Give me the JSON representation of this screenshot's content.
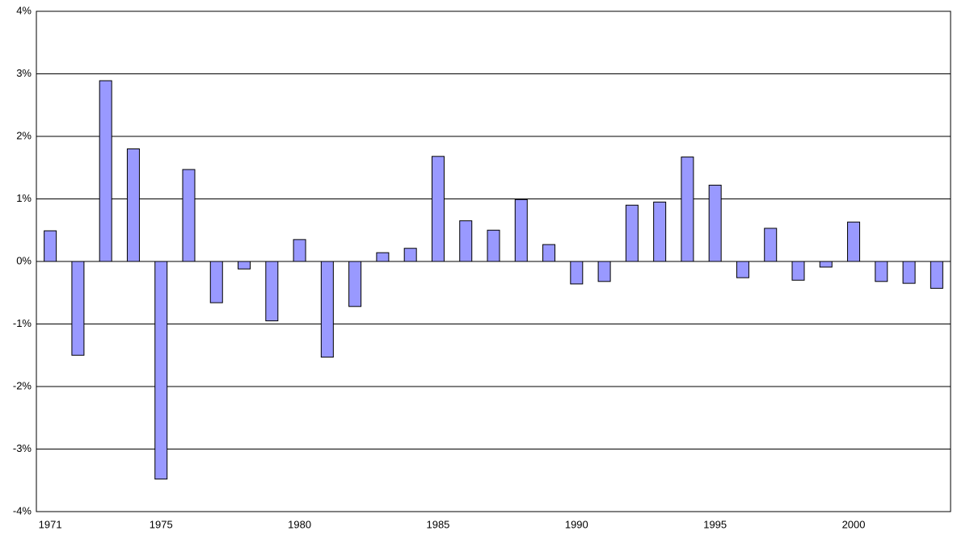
{
  "chart_data": {
    "type": "bar",
    "categories": [
      "1971",
      null,
      null,
      null,
      "1975",
      null,
      null,
      null,
      null,
      "1980",
      null,
      null,
      null,
      null,
      "1985",
      null,
      null,
      null,
      null,
      "1990",
      null,
      null,
      null,
      null,
      "1995",
      null,
      null,
      null,
      null,
      "2000",
      null,
      null,
      null
    ],
    "values": [
      0.49,
      -1.5,
      2.89,
      1.8,
      -3.48,
      1.47,
      -0.66,
      -0.12,
      -0.95,
      0.35,
      -1.53,
      -0.72,
      0.14,
      0.21,
      1.68,
      0.65,
      0.5,
      0.99,
      0.27,
      -0.36,
      -0.32,
      0.9,
      0.95,
      1.67,
      1.22,
      -0.26,
      0.53,
      -0.3,
      -0.09,
      0.63,
      -0.32,
      -0.35,
      -0.43
    ],
    "color": "#9999ff",
    "ylim": [
      -4,
      4
    ],
    "yticks": [
      {
        "value": -4,
        "label": "-4%"
      },
      {
        "value": -3,
        "label": "-3%"
      },
      {
        "value": -2,
        "label": "-2%"
      },
      {
        "value": -1,
        "label": "-1%"
      },
      {
        "value": 0,
        "label": "0%"
      },
      {
        "value": 1,
        "label": "1%"
      },
      {
        "value": 2,
        "label": "2%"
      },
      {
        "value": 3,
        "label": "3%"
      },
      {
        "value": 4,
        "label": "4%"
      }
    ],
    "grid": true
  }
}
